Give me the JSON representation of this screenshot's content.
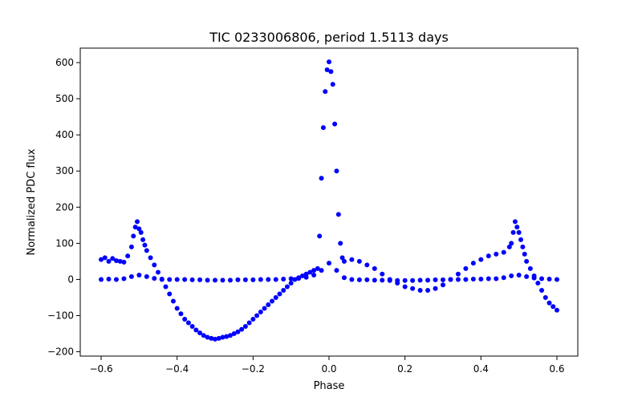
{
  "chart_data": {
    "type": "scatter",
    "title": "TIC 0233006806, period 1.5113 days",
    "xlabel": "Phase",
    "ylabel": "Normalized PDC flux",
    "xlim": [
      -0.655,
      0.655
    ],
    "ylim": [
      -212,
      640
    ],
    "grid": false,
    "x_ticks": [
      -0.6,
      -0.4,
      -0.2,
      0.0,
      0.2,
      0.4,
      0.6
    ],
    "x_tick_labels": [
      "−0.6",
      "−0.4",
      "−0.2",
      "0.0",
      "0.2",
      "0.4",
      "0.6"
    ],
    "y_ticks": [
      -200,
      -100,
      0,
      100,
      200,
      300,
      400,
      500,
      600
    ],
    "y_tick_labels": [
      "−200",
      "−100",
      "0",
      "100",
      "200",
      "300",
      "400",
      "500",
      "600"
    ],
    "marker_color": "#0000ff",
    "series": [
      {
        "points": [
          [
            -0.6,
            0
          ],
          [
            -0.58,
            1
          ],
          [
            -0.56,
            0
          ],
          [
            -0.54,
            2
          ],
          [
            -0.52,
            8
          ],
          [
            -0.5,
            12
          ],
          [
            -0.48,
            8
          ],
          [
            -0.46,
            3
          ],
          [
            -0.44,
            1
          ],
          [
            -0.42,
            0
          ],
          [
            -0.4,
            0
          ],
          [
            -0.38,
            0
          ],
          [
            -0.36,
            -1
          ],
          [
            -0.34,
            -1
          ],
          [
            -0.32,
            -2
          ],
          [
            -0.3,
            -2
          ],
          [
            -0.28,
            -2
          ],
          [
            -0.26,
            -2
          ],
          [
            -0.24,
            -1
          ],
          [
            -0.22,
            -1
          ],
          [
            -0.2,
            -1
          ],
          [
            -0.18,
            0
          ],
          [
            -0.16,
            0
          ],
          [
            -0.14,
            0
          ],
          [
            -0.12,
            1
          ],
          [
            -0.1,
            2
          ],
          [
            -0.08,
            3
          ],
          [
            -0.06,
            6
          ],
          [
            -0.04,
            12
          ],
          [
            -0.02,
            25
          ],
          [
            0.0,
            45
          ],
          [
            0.02,
            25
          ],
          [
            0.04,
            5
          ],
          [
            0.06,
            0
          ],
          [
            0.08,
            -1
          ],
          [
            0.1,
            -1
          ],
          [
            0.12,
            -2
          ],
          [
            0.14,
            -2
          ],
          [
            0.16,
            -3
          ],
          [
            0.18,
            -3
          ],
          [
            0.2,
            -3
          ],
          [
            0.22,
            -3
          ],
          [
            0.24,
            -2
          ],
          [
            0.26,
            -2
          ],
          [
            0.28,
            -1
          ],
          [
            0.3,
            -1
          ],
          [
            0.32,
            0
          ],
          [
            0.34,
            0
          ],
          [
            0.36,
            0
          ],
          [
            0.38,
            1
          ],
          [
            0.4,
            1
          ],
          [
            0.42,
            2
          ],
          [
            0.44,
            2
          ],
          [
            0.46,
            5
          ],
          [
            0.48,
            10
          ],
          [
            0.5,
            12
          ],
          [
            0.52,
            8
          ],
          [
            0.54,
            4
          ],
          [
            0.56,
            2
          ],
          [
            0.58,
            1
          ],
          [
            0.6,
            0
          ],
          [
            -0.6,
            55
          ],
          [
            -0.59,
            60
          ],
          [
            -0.58,
            50
          ],
          [
            -0.57,
            58
          ],
          [
            -0.56,
            52
          ],
          [
            -0.55,
            50
          ],
          [
            -0.54,
            48
          ],
          [
            -0.53,
            65
          ],
          [
            -0.52,
            90
          ],
          [
            -0.515,
            120
          ],
          [
            -0.51,
            145
          ],
          [
            -0.505,
            160
          ],
          [
            -0.5,
            140
          ],
          [
            -0.495,
            130
          ],
          [
            -0.49,
            110
          ],
          [
            -0.485,
            95
          ],
          [
            -0.48,
            80
          ],
          [
            -0.47,
            60
          ],
          [
            -0.46,
            40
          ],
          [
            -0.45,
            20
          ],
          [
            -0.44,
            0
          ],
          [
            -0.43,
            -20
          ],
          [
            -0.42,
            -40
          ],
          [
            -0.41,
            -60
          ],
          [
            -0.4,
            -80
          ],
          [
            -0.39,
            -95
          ],
          [
            -0.38,
            -110
          ],
          [
            -0.37,
            -120
          ],
          [
            -0.36,
            -130
          ],
          [
            -0.35,
            -140
          ],
          [
            -0.34,
            -148
          ],
          [
            -0.33,
            -155
          ],
          [
            -0.32,
            -160
          ],
          [
            -0.31,
            -163
          ],
          [
            -0.3,
            -165
          ],
          [
            -0.29,
            -163
          ],
          [
            -0.28,
            -160
          ],
          [
            -0.27,
            -158
          ],
          [
            -0.26,
            -155
          ],
          [
            -0.25,
            -150
          ],
          [
            -0.24,
            -145
          ],
          [
            -0.23,
            -138
          ],
          [
            -0.22,
            -130
          ],
          [
            -0.21,
            -120
          ],
          [
            -0.2,
            -110
          ],
          [
            -0.19,
            -100
          ],
          [
            -0.18,
            -90
          ],
          [
            -0.17,
            -80
          ],
          [
            -0.16,
            -70
          ],
          [
            -0.15,
            -60
          ],
          [
            -0.14,
            -50
          ],
          [
            -0.13,
            -40
          ],
          [
            -0.12,
            -30
          ],
          [
            -0.11,
            -20
          ],
          [
            -0.1,
            -10
          ],
          [
            -0.09,
            0
          ],
          [
            -0.08,
            5
          ],
          [
            -0.07,
            10
          ],
          [
            -0.06,
            15
          ],
          [
            -0.05,
            20
          ],
          [
            -0.04,
            25
          ],
          [
            -0.03,
            30
          ],
          [
            -0.025,
            120
          ],
          [
            -0.02,
            280
          ],
          [
            -0.015,
            420
          ],
          [
            -0.01,
            520
          ],
          [
            -0.005,
            580
          ],
          [
            0.0,
            602
          ],
          [
            0.005,
            575
          ],
          [
            0.01,
            540
          ],
          [
            0.015,
            430
          ],
          [
            0.02,
            300
          ],
          [
            0.025,
            180
          ],
          [
            0.03,
            100
          ],
          [
            0.035,
            60
          ],
          [
            0.04,
            50
          ],
          [
            0.06,
            55
          ],
          [
            0.08,
            50
          ],
          [
            0.1,
            40
          ],
          [
            0.12,
            30
          ],
          [
            0.14,
            15
          ],
          [
            0.16,
            0
          ],
          [
            0.18,
            -10
          ],
          [
            0.2,
            -20
          ],
          [
            0.22,
            -25
          ],
          [
            0.24,
            -30
          ],
          [
            0.26,
            -30
          ],
          [
            0.28,
            -25
          ],
          [
            0.3,
            -15
          ],
          [
            0.32,
            0
          ],
          [
            0.34,
            15
          ],
          [
            0.36,
            30
          ],
          [
            0.38,
            45
          ],
          [
            0.4,
            55
          ],
          [
            0.42,
            65
          ],
          [
            0.44,
            70
          ],
          [
            0.46,
            75
          ],
          [
            0.475,
            90
          ],
          [
            0.48,
            100
          ],
          [
            0.485,
            130
          ],
          [
            0.49,
            160
          ],
          [
            0.495,
            145
          ],
          [
            0.5,
            130
          ],
          [
            0.505,
            110
          ],
          [
            0.51,
            90
          ],
          [
            0.515,
            70
          ],
          [
            0.52,
            50
          ],
          [
            0.53,
            30
          ],
          [
            0.54,
            10
          ],
          [
            0.55,
            -10
          ],
          [
            0.56,
            -30
          ],
          [
            0.57,
            -50
          ],
          [
            0.58,
            -65
          ],
          [
            0.59,
            -75
          ],
          [
            0.6,
            -85
          ]
        ]
      }
    ]
  }
}
